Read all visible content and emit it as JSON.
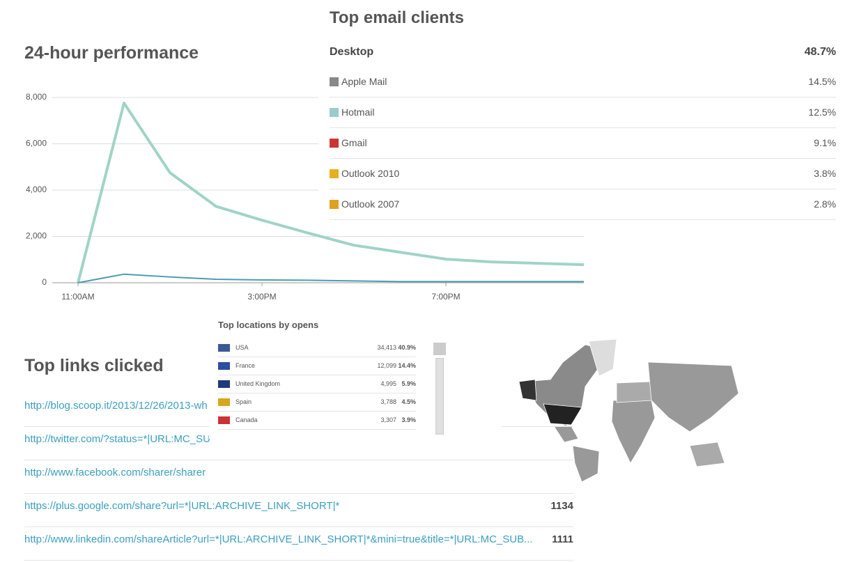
{
  "chart_data": {
    "type": "line",
    "title": "24-hour performance",
    "x": [
      11,
      12,
      13,
      14,
      15,
      16,
      17,
      18,
      19,
      20,
      21,
      22
    ],
    "xlim": [
      11,
      22
    ],
    "xticks": [
      {
        "value": 11,
        "label": "11:00AM"
      },
      {
        "value": 15,
        "label": "3:00PM"
      },
      {
        "value": 19,
        "label": "7:00PM"
      }
    ],
    "ylim": [
      0,
      8000
    ],
    "yticks": [
      0,
      {
        "value": 2000,
        "label": "2,000"
      },
      {
        "value": 4000,
        "label": "4,000"
      },
      {
        "value": 6000,
        "label": "6,000"
      },
      {
        "value": 8000,
        "label": "8,000"
      }
    ],
    "grid": true,
    "series": [
      {
        "color": "#9fd4c7",
        "values": [
          0,
          7760,
          4750,
          3300,
          2700,
          2150,
          1620,
          1320,
          1020,
          900,
          840,
          780
        ]
      },
      {
        "color": "#4b9cb1",
        "values": [
          0,
          370,
          250,
          150,
          120,
          110,
          80,
          50,
          50,
          50,
          50,
          50
        ]
      }
    ]
  },
  "email_clients": {
    "title": "Top email clients",
    "group": "Desktop",
    "group_share": "48.7%",
    "rows": [
      [
        "Apple Mail",
        "14.5%"
      ],
      [
        "Hotmail",
        "12.5%"
      ],
      [
        "Gmail",
        "9.1%"
      ],
      [
        "Outlook 2010",
        "3.8%"
      ],
      [
        "Outlook 2007",
        "2.8%"
      ]
    ]
  },
  "links": {
    "title": "Top links clicked",
    "rows": [
      [
        "http://blog.scoop.it/2013/12/26/2013-wh",
        ""
      ],
      [
        "http://twitter.com/?status=*|URL:MC_SU",
        ""
      ],
      [
        "http://www.facebook.com/sharer/sharer",
        ""
      ],
      [
        "https://plus.google.com/share?url=*|URL:ARCHIVE_LINK_SHORT|*",
        "1134"
      ],
      [
        "http://www.linkedin.com/shareArticle?url=*|URL:ARCHIVE_LINK_SHORT|*&mini=true&title=*|URL:MC_SUB...",
        "1111"
      ]
    ]
  },
  "locations": {
    "title": "Top locations by opens",
    "rows": [
      [
        "USA",
        "34,413",
        "40.9%"
      ],
      [
        "France",
        "12,099",
        "14.4%"
      ],
      [
        "United Kingdom",
        "4,995",
        "5.9%"
      ],
      [
        "Spain",
        "3,788",
        "4.5%"
      ],
      [
        "Canada",
        "3,307",
        "3.9%"
      ]
    ]
  }
}
